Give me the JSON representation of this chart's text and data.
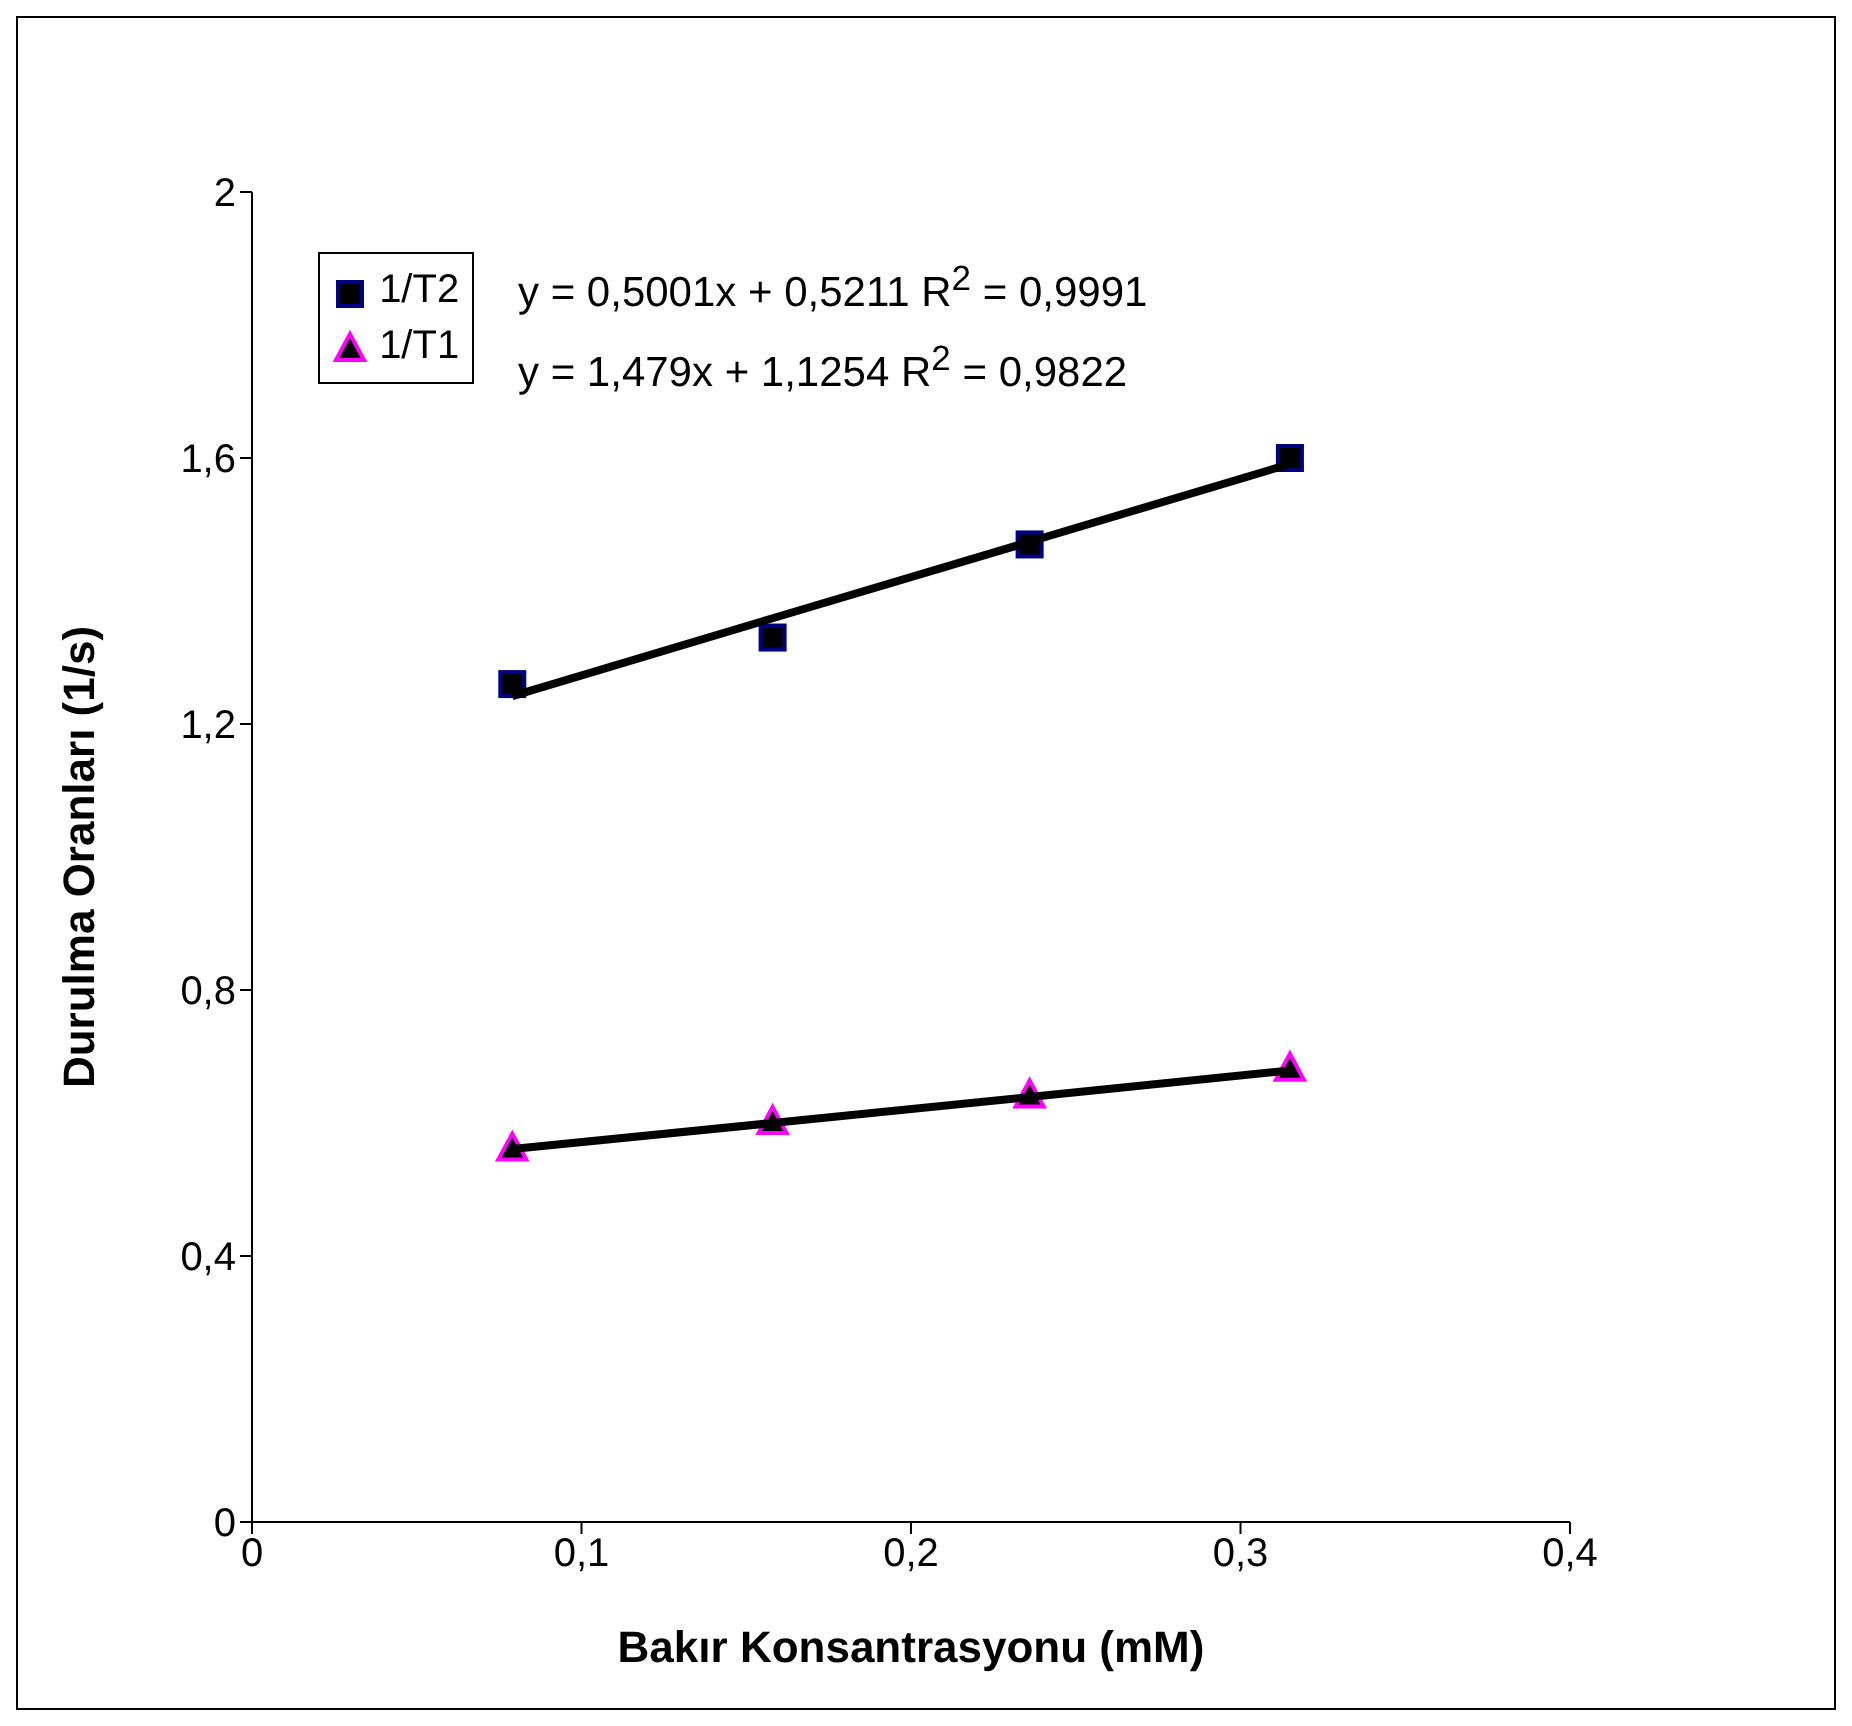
{
  "chart_data": {
    "type": "scatter",
    "xlabel": "Bakır Konsantrasyonu (mM)",
    "ylabel": "Durulma Oranları (1/s)",
    "xlim": [
      0,
      0.4
    ],
    "xticks": [
      0,
      {
        "value": 0.1,
        "label": "0,1"
      },
      {
        "value": 0.2,
        "label": "0,2"
      },
      {
        "value": 0.3,
        "label": "0,3"
      },
      {
        "value": 0.4,
        "label": "0,4"
      }
    ],
    "ylim": [
      0,
      2
    ],
    "yticks": [
      0,
      {
        "value": 0.4,
        "label": "0,4"
      },
      {
        "value": 0.8,
        "label": "0,8"
      },
      {
        "value": 1.2,
        "label": "1,2"
      },
      {
        "value": 1.6,
        "label": "1,6"
      },
      2
    ],
    "x": [
      0.079,
      0.158,
      0.236,
      0.315
    ],
    "grid": false,
    "legend": "top left",
    "series": [
      {
        "name": "1/T2",
        "marker": "square",
        "color": "#000080",
        "values": [
          1.26,
          1.33,
          1.47,
          1.6
        ]
      },
      {
        "name": "1/T1",
        "marker": "triangle",
        "color": "#ff00ff",
        "values": [
          0.56,
          0.6,
          0.64,
          0.68
        ]
      },
      {
        "type": "line",
        "marker": "none",
        "color": "#000000",
        "values": [
          1.242,
          1.359,
          1.474,
          1.591
        ]
      },
      {
        "type": "line",
        "marker": "none",
        "color": "#000000",
        "values": [
          0.561,
          0.6,
          0.639,
          0.679
        ]
      }
    ],
    "annotations": [
      "y = 0,5001x + 0,5211  R$^{2}$ = 0,9991",
      "y = 1,479x + 1,1254  R$^{2}$ = 0,9822"
    ]
  }
}
